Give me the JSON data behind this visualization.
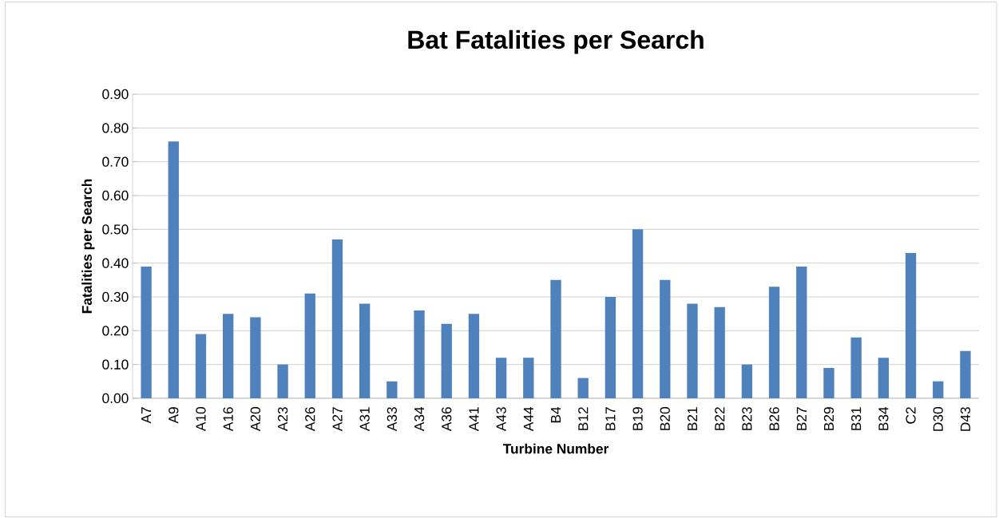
{
  "chart_data": {
    "type": "bar",
    "title": "Bat Fatalities per Search",
    "xlabel": "Turbine Number",
    "ylabel": "Fatalities per Search",
    "categories": [
      "A7",
      "A9",
      "A10",
      "A16",
      "A20",
      "A23",
      "A26",
      "A27",
      "A31",
      "A33",
      "A34",
      "A36",
      "A41",
      "A43",
      "A44",
      "B4",
      "B12",
      "B17",
      "B19",
      "B20",
      "B21",
      "B22",
      "B23",
      "B26",
      "B27",
      "B29",
      "B31",
      "B34",
      "C2",
      "D30",
      "D43"
    ],
    "values": [
      0.39,
      0.76,
      0.19,
      0.25,
      0.24,
      0.1,
      0.31,
      0.47,
      0.28,
      0.05,
      0.26,
      0.22,
      0.25,
      0.12,
      0.12,
      0.35,
      0.06,
      0.3,
      0.5,
      0.35,
      0.28,
      0.27,
      0.1,
      0.33,
      0.39,
      0.09,
      0.18,
      0.12,
      0.43,
      0.05,
      0.14
    ],
    "color": "#4f81bd",
    "ylim": [
      0,
      0.9
    ],
    "yticks": [
      {
        "value": 0,
        "label": "0.00"
      },
      {
        "value": 0.1,
        "label": "0.10"
      },
      {
        "value": 0.2,
        "label": "0.20"
      },
      {
        "value": 0.3,
        "label": "0.30"
      },
      {
        "value": 0.4,
        "label": "0.40"
      },
      {
        "value": 0.5,
        "label": "0.50"
      },
      {
        "value": 0.6,
        "label": "0.60"
      },
      {
        "value": 0.7,
        "label": "0.70"
      },
      {
        "value": 0.8,
        "label": "0.80"
      },
      {
        "value": 0.9,
        "label": "0.90"
      }
    ],
    "grid": true
  }
}
